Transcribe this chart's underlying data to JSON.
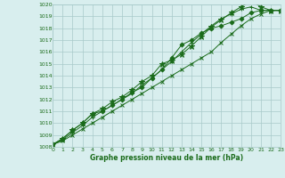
{
  "x": [
    0,
    1,
    2,
    3,
    4,
    5,
    6,
    7,
    8,
    9,
    10,
    11,
    12,
    13,
    14,
    15,
    16,
    17,
    18,
    19,
    20,
    21,
    22,
    23
  ],
  "lines": [
    [
      1008.2,
      1008.7,
      1009.4,
      1010.0,
      1010.8,
      1011.0,
      1011.5,
      1012.0,
      1012.6,
      1013.0,
      1013.8,
      1014.5,
      1015.5,
      1016.6,
      1017.0,
      1017.6,
      1018.0,
      1018.2,
      1018.5,
      1018.8,
      1019.3,
      1019.5,
      1019.5,
      1019.5
    ],
    [
      1008.2,
      1008.7,
      1009.4,
      1010.0,
      1010.8,
      1011.2,
      1011.8,
      1012.2,
      1012.8,
      1013.5,
      1014.0,
      1015.0,
      1015.3,
      1015.8,
      1016.5,
      1017.3,
      1018.1,
      1018.7,
      1019.3,
      1019.8,
      1020.3,
      1019.8,
      1019.5,
      1019.5
    ],
    [
      1008.2,
      1008.6,
      1009.2,
      1009.8,
      1010.5,
      1011.0,
      1011.5,
      1012.0,
      1012.5,
      1013.2,
      1013.8,
      1014.5,
      1015.2,
      1016.0,
      1016.8,
      1017.5,
      1018.2,
      1018.8,
      1019.2,
      1019.6,
      1019.8,
      1019.5,
      1019.5,
      1019.5
    ],
    [
      1008.2,
      1008.5,
      1009.0,
      1009.5,
      1010.0,
      1010.5,
      1011.0,
      1011.5,
      1012.0,
      1012.5,
      1013.0,
      1013.5,
      1014.0,
      1014.5,
      1015.0,
      1015.5,
      1016.0,
      1016.8,
      1017.5,
      1018.2,
      1018.8,
      1019.2,
      1019.5,
      1019.5
    ]
  ],
  "markers": [
    "D",
    "*",
    "+",
    "x"
  ],
  "marker_sizes": [
    2.5,
    4.5,
    3.5,
    3.5
  ],
  "line_color": "#1a6b1a",
  "marker_color": "#1a6b1a",
  "bg_color": "#d8eeee",
  "grid_color": "#a8caca",
  "text_color": "#1a6b1a",
  "xlabel": "Graphe pression niveau de la mer (hPa)",
  "ylim": [
    1008,
    1020
  ],
  "xlim": [
    0,
    23
  ],
  "yticks": [
    1008,
    1009,
    1010,
    1011,
    1012,
    1013,
    1014,
    1015,
    1016,
    1017,
    1018,
    1019,
    1020
  ],
  "xticks": [
    0,
    1,
    2,
    3,
    4,
    5,
    6,
    7,
    8,
    9,
    10,
    11,
    12,
    13,
    14,
    15,
    16,
    17,
    18,
    19,
    20,
    21,
    22,
    23
  ]
}
